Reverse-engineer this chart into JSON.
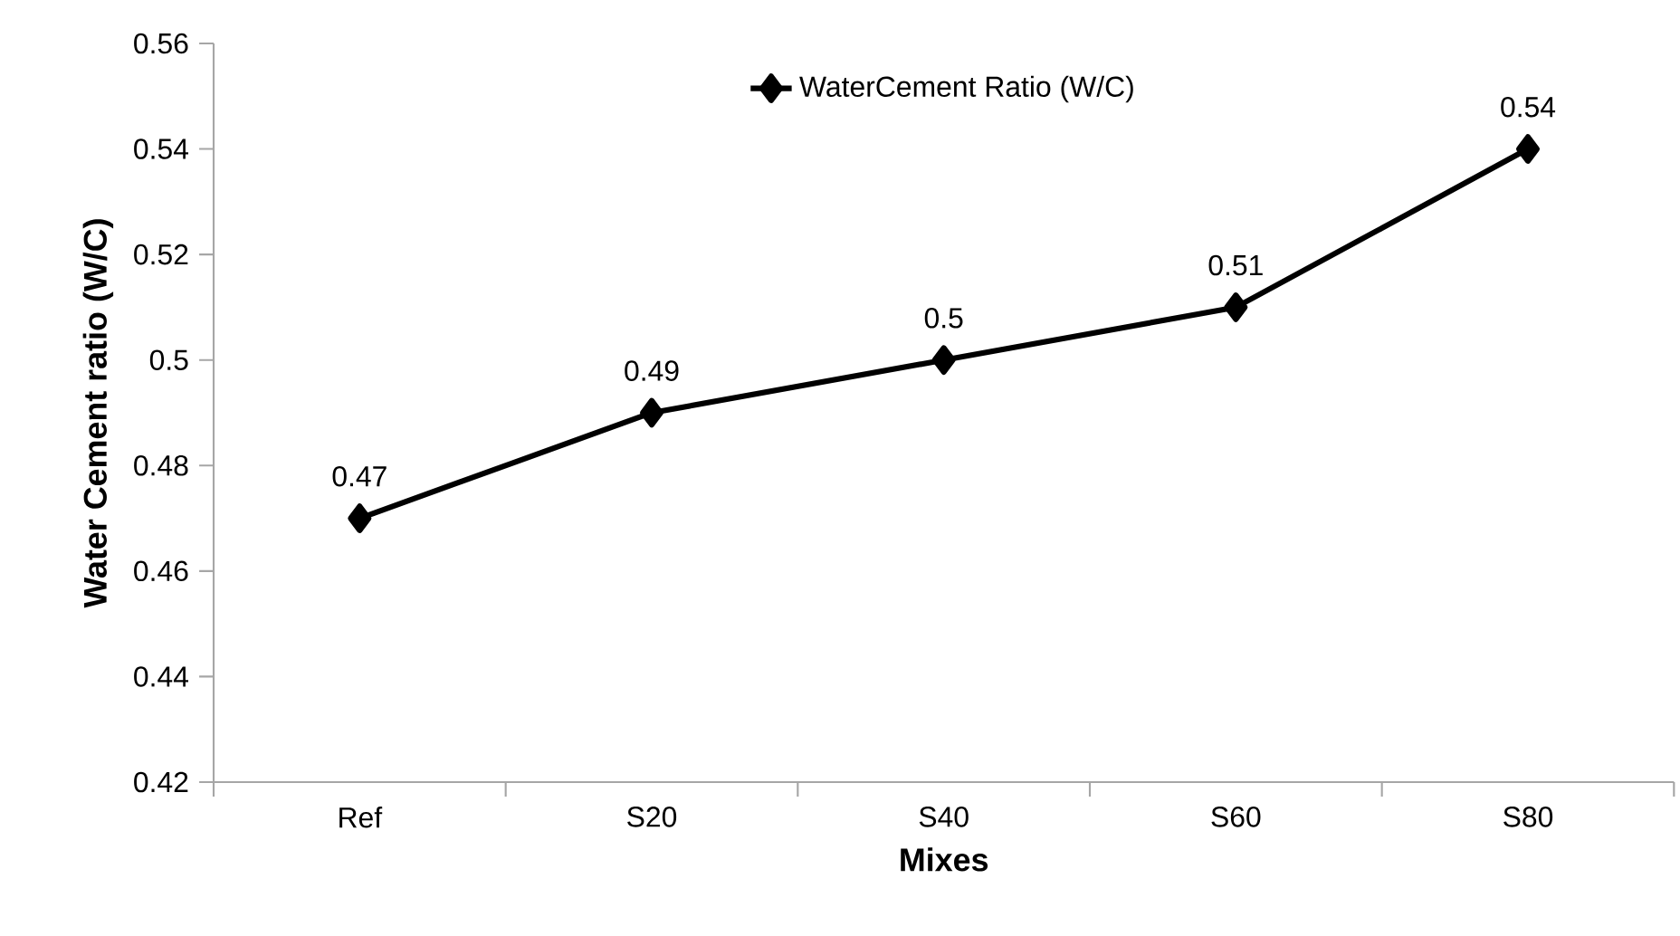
{
  "chart_data": {
    "type": "line",
    "xlabel": "Mixes",
    "ylabel": "Water Cement ratio (W/C)",
    "categories": [
      "Ref",
      "S20",
      "S40",
      "S60",
      "S80"
    ],
    "series": [
      {
        "name": "WaterCement Ratio (W/C)",
        "color": "#000000",
        "values": [
          0.47,
          0.49,
          0.5,
          0.51,
          0.54
        ]
      }
    ],
    "ylim": [
      0.42,
      0.56
    ],
    "yticks": [
      0.42,
      0.44,
      0.46,
      0.48,
      0.5,
      0.52,
      0.54,
      0.56
    ],
    "data_labels": true,
    "marker": "diamond",
    "legend": "top",
    "grid": false
  }
}
